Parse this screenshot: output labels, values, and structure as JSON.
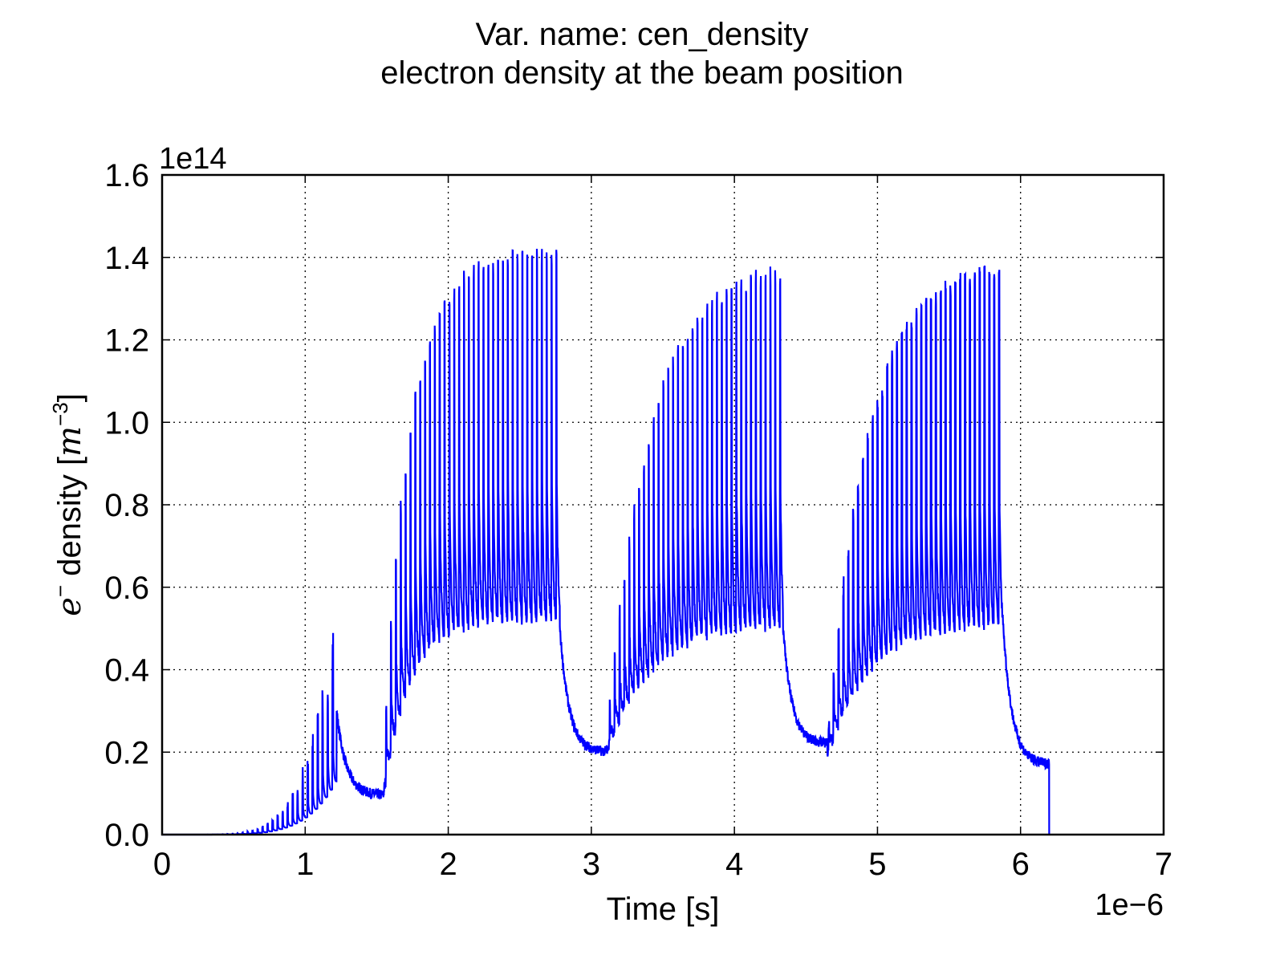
{
  "chart_data": {
    "type": "line",
    "title": "Var. name: cen_density",
    "subtitle": "electron density at the beam position",
    "xlabel": "Time [s]",
    "ylabel_prefix": "e",
    "ylabel_sup": "−",
    "ylabel_main": " density [",
    "ylabel_unit": "m",
    "ylabel_unit_sup": "−3",
    "ylabel_close": "]",
    "x_multiplier": "1e−6",
    "y_multiplier": "1e14",
    "x_scale": 1e-06,
    "y_scale": 100000000000000.0,
    "xlim": [
      0,
      7
    ],
    "ylim": [
      0,
      1.6
    ],
    "xticks": [
      "0",
      "1",
      "2",
      "3",
      "4",
      "5",
      "6",
      "7"
    ],
    "yticks": [
      "0.0",
      "0.2",
      "0.4",
      "0.6",
      "0.8",
      "1.0",
      "1.2",
      "1.4",
      "1.6"
    ],
    "grid": true,
    "series": [
      {
        "color": "#0000ff",
        "segments": [
          {
            "t0": 0.0,
            "t1": 1.22,
            "rise": "exp",
            "peak_start": 0.0,
            "peak_end": 0.6,
            "base_start": 0.0,
            "base_end": 0.28,
            "spike_period": 0.035
          },
          {
            "t0": 1.22,
            "t1": 1.55,
            "decay_from": 0.3,
            "decay_to": 0.095
          },
          {
            "t0": 1.55,
            "t1": 2.78,
            "rise_to_peak": 1.4,
            "tau": 0.18,
            "base_low": 0.5,
            "base_start": 0.1,
            "spike_period": 0.034
          },
          {
            "t0": 2.78,
            "t1": 3.1,
            "decay_from": 0.5,
            "decay_to": 0.2
          },
          {
            "t0": 3.1,
            "t1": 4.34,
            "rise_to_peak": 1.38,
            "tau": 0.3,
            "base_low": 0.49,
            "base_start": 0.19,
            "spike_period": 0.034
          },
          {
            "t0": 4.34,
            "t1": 4.65,
            "decay_from": 0.5,
            "decay_to": 0.22
          },
          {
            "t0": 4.65,
            "t1": 5.88,
            "rise_to_peak": 1.38,
            "tau": 0.28,
            "base_low": 0.49,
            "base_start": 0.19,
            "spike_period": 0.034
          },
          {
            "t0": 5.88,
            "t1": 6.2,
            "decay_from": 0.5,
            "decay_to": 0.17
          }
        ],
        "end_drop": {
          "t": 6.2,
          "y": 0.0
        }
      }
    ]
  }
}
